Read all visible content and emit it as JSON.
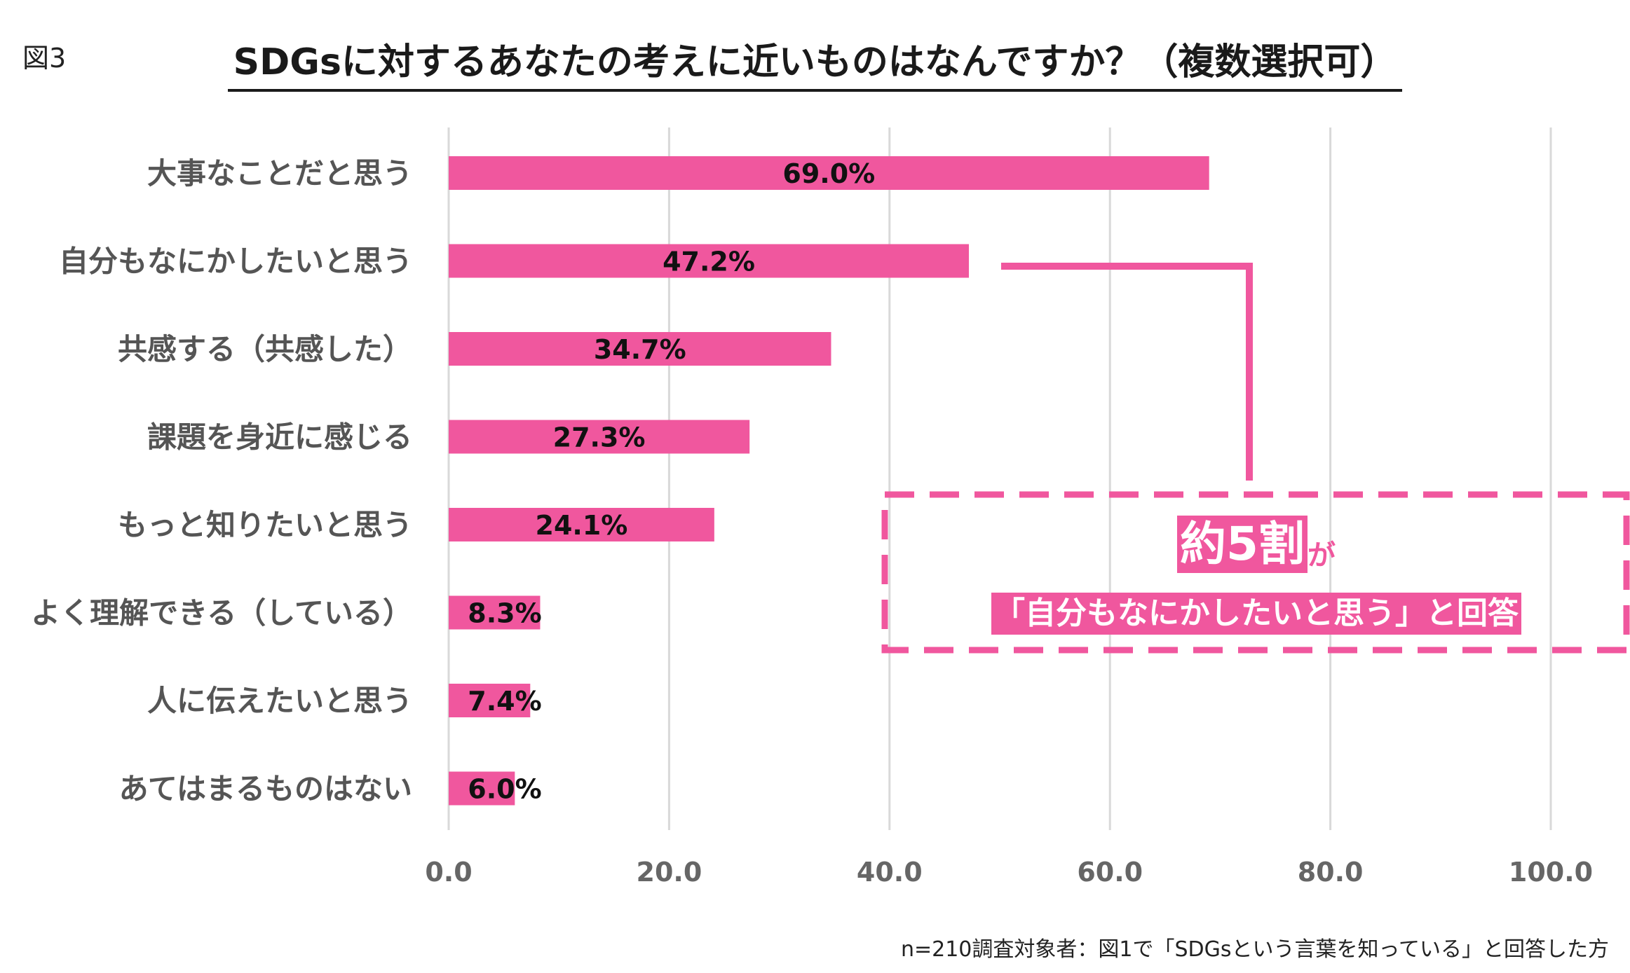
{
  "figure_label": "図3",
  "title": "SDGsに対するあなたの考えに近いものはなんですか？（複数選択可）",
  "callout": {
    "big_text": "約5割",
    "small_text": "が",
    "quote_text": "「自分もなにかしたいと思う」と回答",
    "color": "#f0579e"
  },
  "footnote": "n=210調査対象者：図1で「SDGsという言葉を知っている」と回答した方",
  "chart_data": {
    "type": "bar",
    "orientation": "horizontal",
    "categories": [
      "大事なことだと思う",
      "自分もなにかしたいと思う",
      "共感する（共感した）",
      "課題を身近に感じる",
      "もっと知りたいと思う",
      "よく理解できる（している）",
      "人に伝えたいと思う",
      "あてはまるものはない"
    ],
    "values": [
      69.0,
      47.2,
      34.7,
      27.3,
      24.1,
      8.3,
      7.4,
      6.0
    ],
    "value_labels": [
      "69.0%",
      "47.2%",
      "34.7%",
      "27.3%",
      "24.1%",
      "8.3%",
      "7.4%",
      "6.0%"
    ],
    "xticks": [
      "0.0",
      "20.0",
      "40.0",
      "60.0",
      "80.0",
      "100.0"
    ],
    "xlim": [
      0,
      100
    ],
    "grid": "vertical",
    "bar_color": "#f0579e",
    "grid_color": "#d9d9d9"
  }
}
